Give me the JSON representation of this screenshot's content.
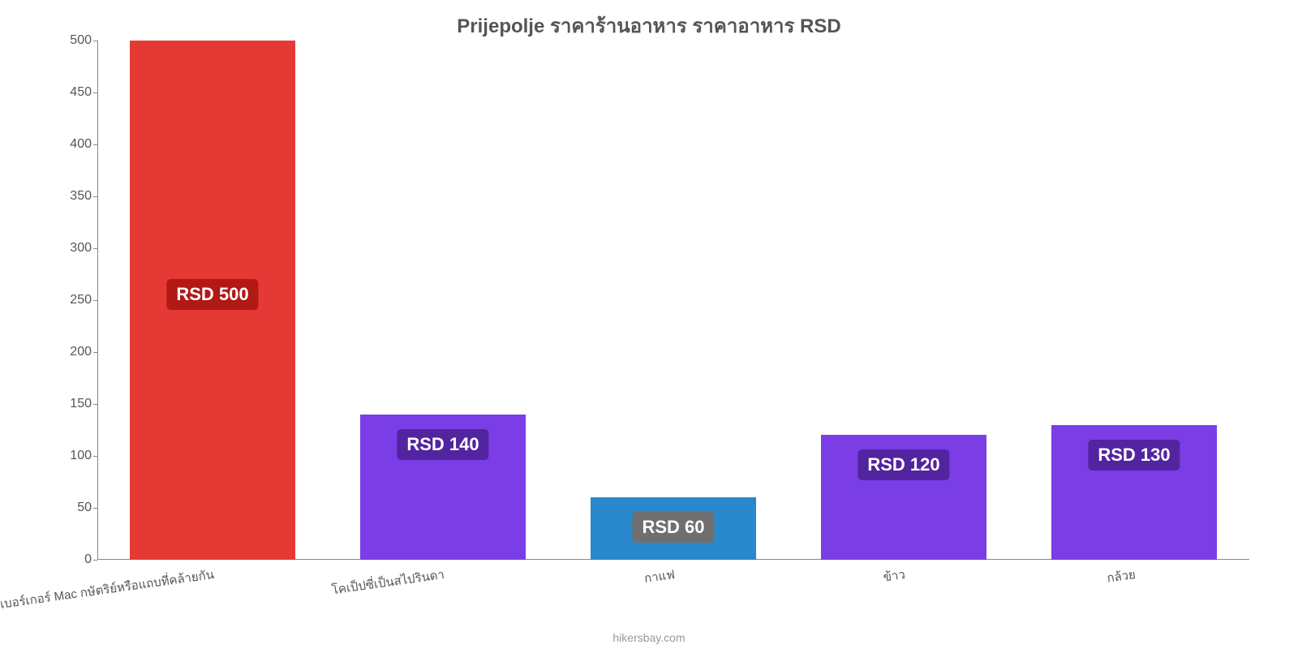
{
  "chart": {
    "type": "bar",
    "title": "Prijepolje ราคาร้านอาหาร ราคาอาหาร RSD",
    "title_color": "#555555",
    "title_fontsize": 24,
    "background_color": "#ffffff",
    "axis_color": "#888888",
    "tick_label_color": "#555555",
    "tick_fontsize": 16,
    "x_label_fontsize": 15,
    "x_label_rotation_deg": -8,
    "ylim": [
      0,
      500
    ],
    "ytick_step": 50,
    "yticks": [
      0,
      50,
      100,
      150,
      200,
      250,
      300,
      350,
      400,
      450,
      500
    ],
    "bar_width_ratio": 0.72,
    "value_label_fontsize": 22,
    "value_label_text_color": "#ffffff",
    "categories": [
      {
        "label": "เบอร์เกอร์ Mac กษัตริย์หรือแถบที่คล้ายกัน",
        "value": 500,
        "value_text": "RSD 500",
        "bar_color": "#e53935",
        "value_bg": "#b01914"
      },
      {
        "label": "โคเป็ปซี่เป็นสไปรินดา",
        "value": 140,
        "value_text": "RSD 140",
        "bar_color": "#7a3de6",
        "value_bg": "#53249f"
      },
      {
        "label": "กาแฟ",
        "value": 60,
        "value_text": "RSD 60",
        "bar_color": "#2988cc",
        "value_bg": "#6f6f6f"
      },
      {
        "label": "ข้าว",
        "value": 120,
        "value_text": "RSD 120",
        "bar_color": "#7a3de6",
        "value_bg": "#53249f"
      },
      {
        "label": "กล้วย",
        "value": 130,
        "value_text": "RSD 130",
        "bar_color": "#7a3de6",
        "value_bg": "#53249f"
      }
    ],
    "credit": "hikersbay.com",
    "credit_color": "#999999"
  }
}
